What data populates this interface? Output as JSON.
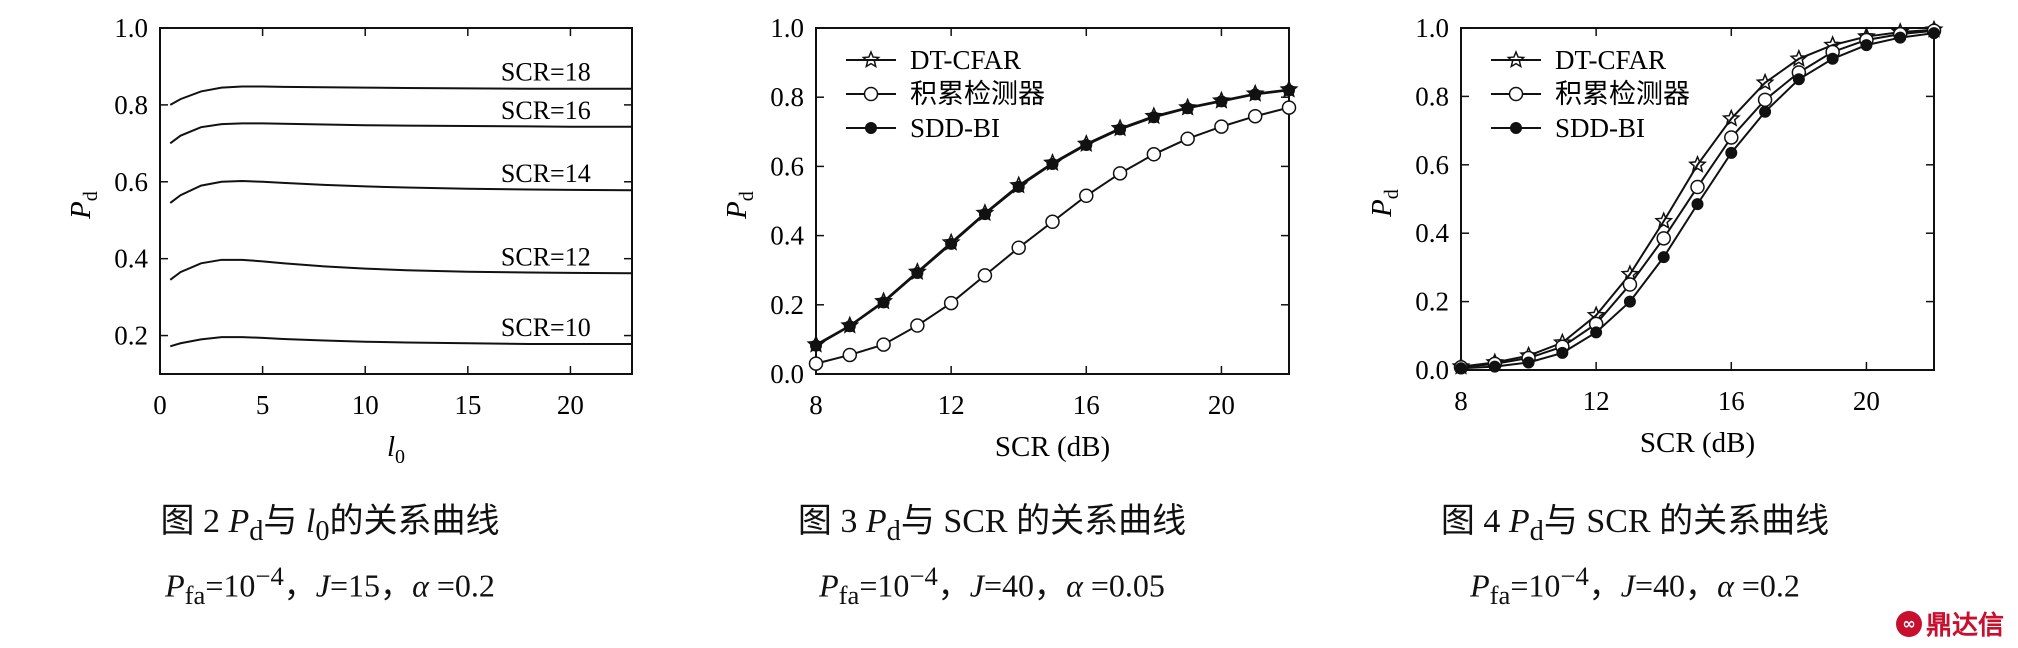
{
  "chart_data": [
    {
      "type": "line",
      "xlabel": "l0",
      "ylabel": "Pd",
      "xlim": [
        0,
        23
      ],
      "ylim": [
        0.1,
        1.0
      ],
      "xticks": [
        0,
        5,
        10,
        15,
        20
      ],
      "yticks": [
        0.2,
        0.4,
        0.6,
        0.8,
        1.0
      ],
      "series": [
        {
          "name": "SCR=18",
          "x": [
            0.5,
            1,
            2,
            3,
            4,
            5,
            6,
            8,
            10,
            12,
            15,
            18,
            20,
            23
          ],
          "y": [
            0.8,
            0.815,
            0.835,
            0.845,
            0.848,
            0.848,
            0.847,
            0.846,
            0.845,
            0.844,
            0.843,
            0.842,
            0.842,
            0.842
          ]
        },
        {
          "name": "SCR=16",
          "x": [
            0.5,
            1,
            2,
            3,
            4,
            5,
            6,
            8,
            10,
            12,
            15,
            18,
            20,
            23
          ],
          "y": [
            0.7,
            0.72,
            0.742,
            0.75,
            0.752,
            0.752,
            0.751,
            0.749,
            0.747,
            0.746,
            0.745,
            0.744,
            0.743,
            0.743
          ]
        },
        {
          "name": "SCR=14",
          "x": [
            0.5,
            1,
            2,
            3,
            4,
            5,
            6,
            8,
            10,
            12,
            15,
            18,
            20,
            23
          ],
          "y": [
            0.545,
            0.565,
            0.59,
            0.6,
            0.602,
            0.6,
            0.597,
            0.592,
            0.588,
            0.585,
            0.582,
            0.58,
            0.579,
            0.578
          ]
        },
        {
          "name": "SCR=12",
          "x": [
            0.5,
            1,
            2,
            3,
            4,
            5,
            6,
            8,
            10,
            12,
            15,
            18,
            20,
            23
          ],
          "y": [
            0.345,
            0.365,
            0.388,
            0.397,
            0.397,
            0.393,
            0.388,
            0.38,
            0.374,
            0.37,
            0.366,
            0.364,
            0.363,
            0.362
          ]
        },
        {
          "name": "SCR=10",
          "x": [
            0.5,
            1,
            2,
            3,
            4,
            5,
            6,
            8,
            10,
            12,
            15,
            18,
            20,
            23
          ],
          "y": [
            0.172,
            0.18,
            0.19,
            0.196,
            0.196,
            0.194,
            0.191,
            0.187,
            0.184,
            0.182,
            0.18,
            0.178,
            0.178,
            0.178
          ]
        }
      ]
    },
    {
      "type": "line",
      "xlabel": "SCR (dB)",
      "ylabel": "Pd",
      "xlim": [
        8,
        22
      ],
      "ylim": [
        0,
        1.0
      ],
      "xticks": [
        8,
        12,
        16,
        20
      ],
      "yticks": [
        0.0,
        0.2,
        0.4,
        0.6,
        0.8,
        1.0
      ],
      "legend": "top-left",
      "series": [
        {
          "name": "DT-CFAR",
          "marker": "star",
          "x": [
            8,
            9,
            10,
            11,
            12,
            13,
            14,
            15,
            16,
            17,
            18,
            19,
            20,
            21,
            22
          ],
          "y": [
            0.085,
            0.14,
            0.21,
            0.295,
            0.38,
            0.465,
            0.545,
            0.61,
            0.665,
            0.71,
            0.745,
            0.77,
            0.79,
            0.81,
            0.822
          ]
        },
        {
          "name": "积累检测器",
          "marker": "circle",
          "x": [
            8,
            9,
            10,
            11,
            12,
            13,
            14,
            15,
            16,
            17,
            18,
            19,
            20,
            21,
            22
          ],
          "y": [
            0.03,
            0.055,
            0.085,
            0.14,
            0.205,
            0.285,
            0.365,
            0.44,
            0.515,
            0.58,
            0.635,
            0.68,
            0.715,
            0.745,
            0.77
          ]
        },
        {
          "name": "SDD-BI",
          "marker": "dot",
          "x": [
            8,
            9,
            10,
            11,
            12,
            13,
            14,
            15,
            16,
            17,
            18,
            19,
            20,
            21,
            22
          ],
          "y": [
            0.082,
            0.138,
            0.207,
            0.292,
            0.376,
            0.462,
            0.541,
            0.607,
            0.662,
            0.707,
            0.742,
            0.768,
            0.788,
            0.808,
            0.82
          ]
        }
      ]
    },
    {
      "type": "line",
      "xlabel": "SCR (dB)",
      "ylabel": "Pd",
      "xlim": [
        8,
        22
      ],
      "ylim": [
        0,
        1.0
      ],
      "xticks": [
        8,
        12,
        16,
        20
      ],
      "yticks": [
        0.0,
        0.2,
        0.4,
        0.6,
        0.8,
        1.0
      ],
      "legend": "top-left",
      "series": [
        {
          "name": "DT-CFAR",
          "marker": "star",
          "x": [
            8,
            9,
            10,
            11,
            12,
            13,
            14,
            15,
            16,
            17,
            18,
            19,
            20,
            21,
            22
          ],
          "y": [
            0.01,
            0.022,
            0.042,
            0.08,
            0.16,
            0.28,
            0.435,
            0.6,
            0.735,
            0.84,
            0.91,
            0.95,
            0.975,
            0.988,
            0.995
          ]
        },
        {
          "name": "积累检测器",
          "marker": "circle",
          "x": [
            8,
            9,
            10,
            11,
            12,
            13,
            14,
            15,
            16,
            17,
            18,
            19,
            20,
            21,
            22
          ],
          "y": [
            0.008,
            0.018,
            0.035,
            0.068,
            0.135,
            0.25,
            0.385,
            0.535,
            0.68,
            0.79,
            0.87,
            0.93,
            0.965,
            0.982,
            0.992
          ]
        },
        {
          "name": "SDD-BI",
          "marker": "dot",
          "x": [
            8,
            9,
            10,
            11,
            12,
            13,
            14,
            15,
            16,
            17,
            18,
            19,
            20,
            21,
            22
          ],
          "y": [
            0.005,
            0.01,
            0.022,
            0.05,
            0.11,
            0.2,
            0.33,
            0.485,
            0.635,
            0.755,
            0.85,
            0.91,
            0.95,
            0.972,
            0.985
          ]
        }
      ]
    }
  ],
  "captions": [
    {
      "figure": "图 2",
      "title_pre": "P",
      "title_sub": "d",
      "title_mid": "与",
      "title_var": "l",
      "title_var_sub": "0",
      "title_post": "的关系曲线",
      "param_p": "P",
      "param_p_sub": "fa",
      "param_eq": "=10",
      "param_exp": "−4",
      "param_rest_1": "，",
      "param_j": "J",
      "param_j_val": "=15，",
      "param_alpha": "α",
      "param_alpha_val": " =0.2"
    },
    {
      "figure": "图 3",
      "title_pre": "P",
      "title_sub": "d",
      "title_mid": "与 SCR 的关系曲线",
      "title_var": "",
      "title_var_sub": "",
      "title_post": "",
      "param_p": "P",
      "param_p_sub": "fa",
      "param_eq": "=10",
      "param_exp": "−4",
      "param_rest_1": "，",
      "param_j": "J",
      "param_j_val": "=40，",
      "param_alpha": "α",
      "param_alpha_val": " =0.05"
    },
    {
      "figure": "图 4",
      "title_pre": "P",
      "title_sub": "d",
      "title_mid": "与 SCR 的关系曲线",
      "title_var": "",
      "title_var_sub": "",
      "title_post": "",
      "param_p": "P",
      "param_p_sub": "fa",
      "param_eq": "=10",
      "param_exp": "−4",
      "param_rest_1": "，",
      "param_j": "J",
      "param_j_val": "=40，",
      "param_alpha": "α",
      "param_alpha_val": " =0.2"
    }
  ],
  "watermark": {
    "icon": "logo-circle-icon",
    "text": "鼎达信",
    "symbol": "∞"
  }
}
